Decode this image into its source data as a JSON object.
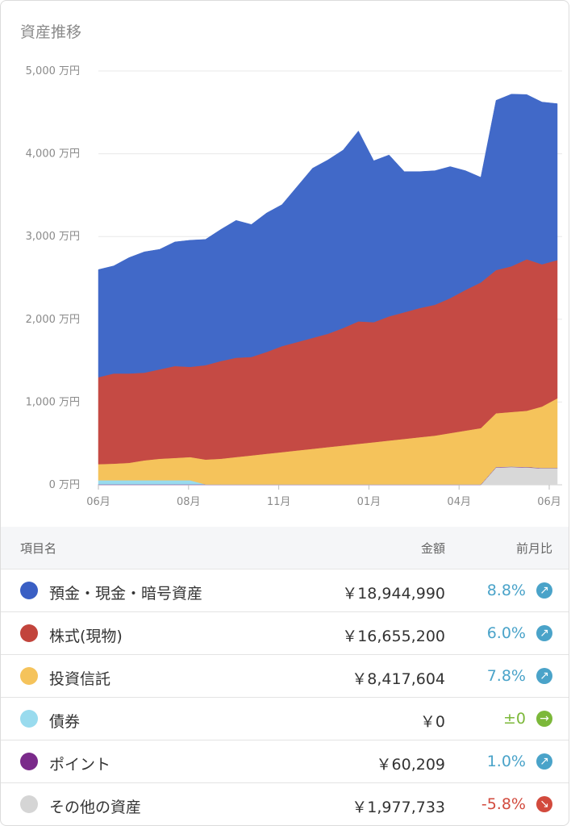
{
  "title": "資産推移",
  "chart_data": {
    "type": "area",
    "stacked": true,
    "unit": "万円",
    "ylim": [
      0,
      5000
    ],
    "yticks": [
      "5,000 万円",
      "4,000 万円",
      "3,000 万円",
      "2,000 万円",
      "1,000 万円",
      "0 万円"
    ],
    "x_tick_labels": [
      "06月",
      "08月",
      "11月",
      "01月",
      "04月",
      "06月"
    ],
    "series_order_bottom_to_top": [
      "その他の資産",
      "ポイント",
      "債券",
      "投資信託",
      "株式(現物)",
      "預金・現金・暗号資産"
    ],
    "colors": {
      "預金・現金・暗号資産": "#4169c8",
      "株式(現物)": "#c54a44",
      "投資信託": "#f5c35b",
      "債券": "#99dbee",
      "ポイント": "#7a2a8a",
      "その他の資産": "#d8d8d8"
    },
    "series": [
      {
        "name": "その他の資産",
        "values": [
          0,
          0,
          0,
          0,
          0,
          0,
          0,
          0,
          0,
          0,
          0,
          0,
          0,
          0,
          0,
          0,
          0,
          0,
          0,
          0,
          0,
          0,
          0,
          0,
          0,
          0,
          210,
          215,
          210,
          200,
          200
        ]
      },
      {
        "name": "ポイント",
        "values": [
          5,
          5,
          5,
          5,
          5,
          5,
          5,
          5,
          5,
          5,
          5,
          5,
          5,
          5,
          5,
          5,
          5,
          5,
          5,
          5,
          5,
          5,
          5,
          5,
          5,
          5,
          5,
          5,
          5,
          5,
          5
        ]
      },
      {
        "name": "債券",
        "values": [
          50,
          50,
          50,
          50,
          50,
          50,
          50,
          0,
          0,
          0,
          0,
          0,
          0,
          0,
          0,
          0,
          0,
          0,
          0,
          0,
          0,
          0,
          0,
          0,
          0,
          0,
          0,
          0,
          0,
          0,
          0
        ]
      },
      {
        "name": "投資信託",
        "values": [
          195,
          200,
          210,
          240,
          260,
          270,
          280,
          300,
          310,
          330,
          350,
          370,
          390,
          410,
          430,
          450,
          470,
          490,
          510,
          530,
          550,
          570,
          590,
          620,
          650,
          680,
          650,
          660,
          680,
          740,
          840
        ]
      },
      {
        "name": "株式(現物)",
        "values": [
          1050,
          1090,
          1080,
          1060,
          1080,
          1110,
          1090,
          1140,
          1180,
          1200,
          1190,
          1230,
          1280,
          1310,
          1340,
          1370,
          1420,
          1480,
          1450,
          1500,
          1530,
          1560,
          1580,
          1630,
          1700,
          1760,
          1730,
          1760,
          1830,
          1720,
          1670
        ]
      },
      {
        "name": "預金・現金・暗号資産",
        "values": [
          1300,
          1300,
          1400,
          1460,
          1450,
          1500,
          1530,
          1520,
          1590,
          1660,
          1600,
          1680,
          1710,
          1880,
          2050,
          2100,
          2150,
          2300,
          1950,
          1950,
          1700,
          1650,
          1620,
          1590,
          1440,
          1270,
          2050,
          2080,
          1990,
          1960,
          1890
        ]
      }
    ]
  },
  "table": {
    "headers": {
      "name": "項目名",
      "amount": "金額",
      "change": "前月比"
    },
    "rows": [
      {
        "name": "預金・現金・暗号資産",
        "amount": "￥18,944,990",
        "change": "8.8%",
        "dot": "#3a5fc4",
        "trend": "up",
        "color": "#4aa3c9"
      },
      {
        "name": "株式(現物)",
        "amount": "￥16,655,200",
        "change": "6.0%",
        "dot": "#c2443c",
        "trend": "up",
        "color": "#4aa3c9"
      },
      {
        "name": "投資信託",
        "amount": "￥8,417,604",
        "change": "7.8%",
        "dot": "#f5c35b",
        "trend": "up",
        "color": "#4aa3c9"
      },
      {
        "name": "債券",
        "amount": "￥0",
        "change": "±0",
        "dot": "#99dbee",
        "trend": "flat",
        "color": "#7cb83a"
      },
      {
        "name": "ポイント",
        "amount": "￥60,209",
        "change": "1.0%",
        "dot": "#7a2a8a",
        "trend": "up",
        "color": "#4aa3c9"
      },
      {
        "name": "その他の資産",
        "amount": "￥1,977,733",
        "change": "-5.8%",
        "dot": "#d5d5d5",
        "trend": "down",
        "color": "#d24a3d"
      }
    ]
  }
}
